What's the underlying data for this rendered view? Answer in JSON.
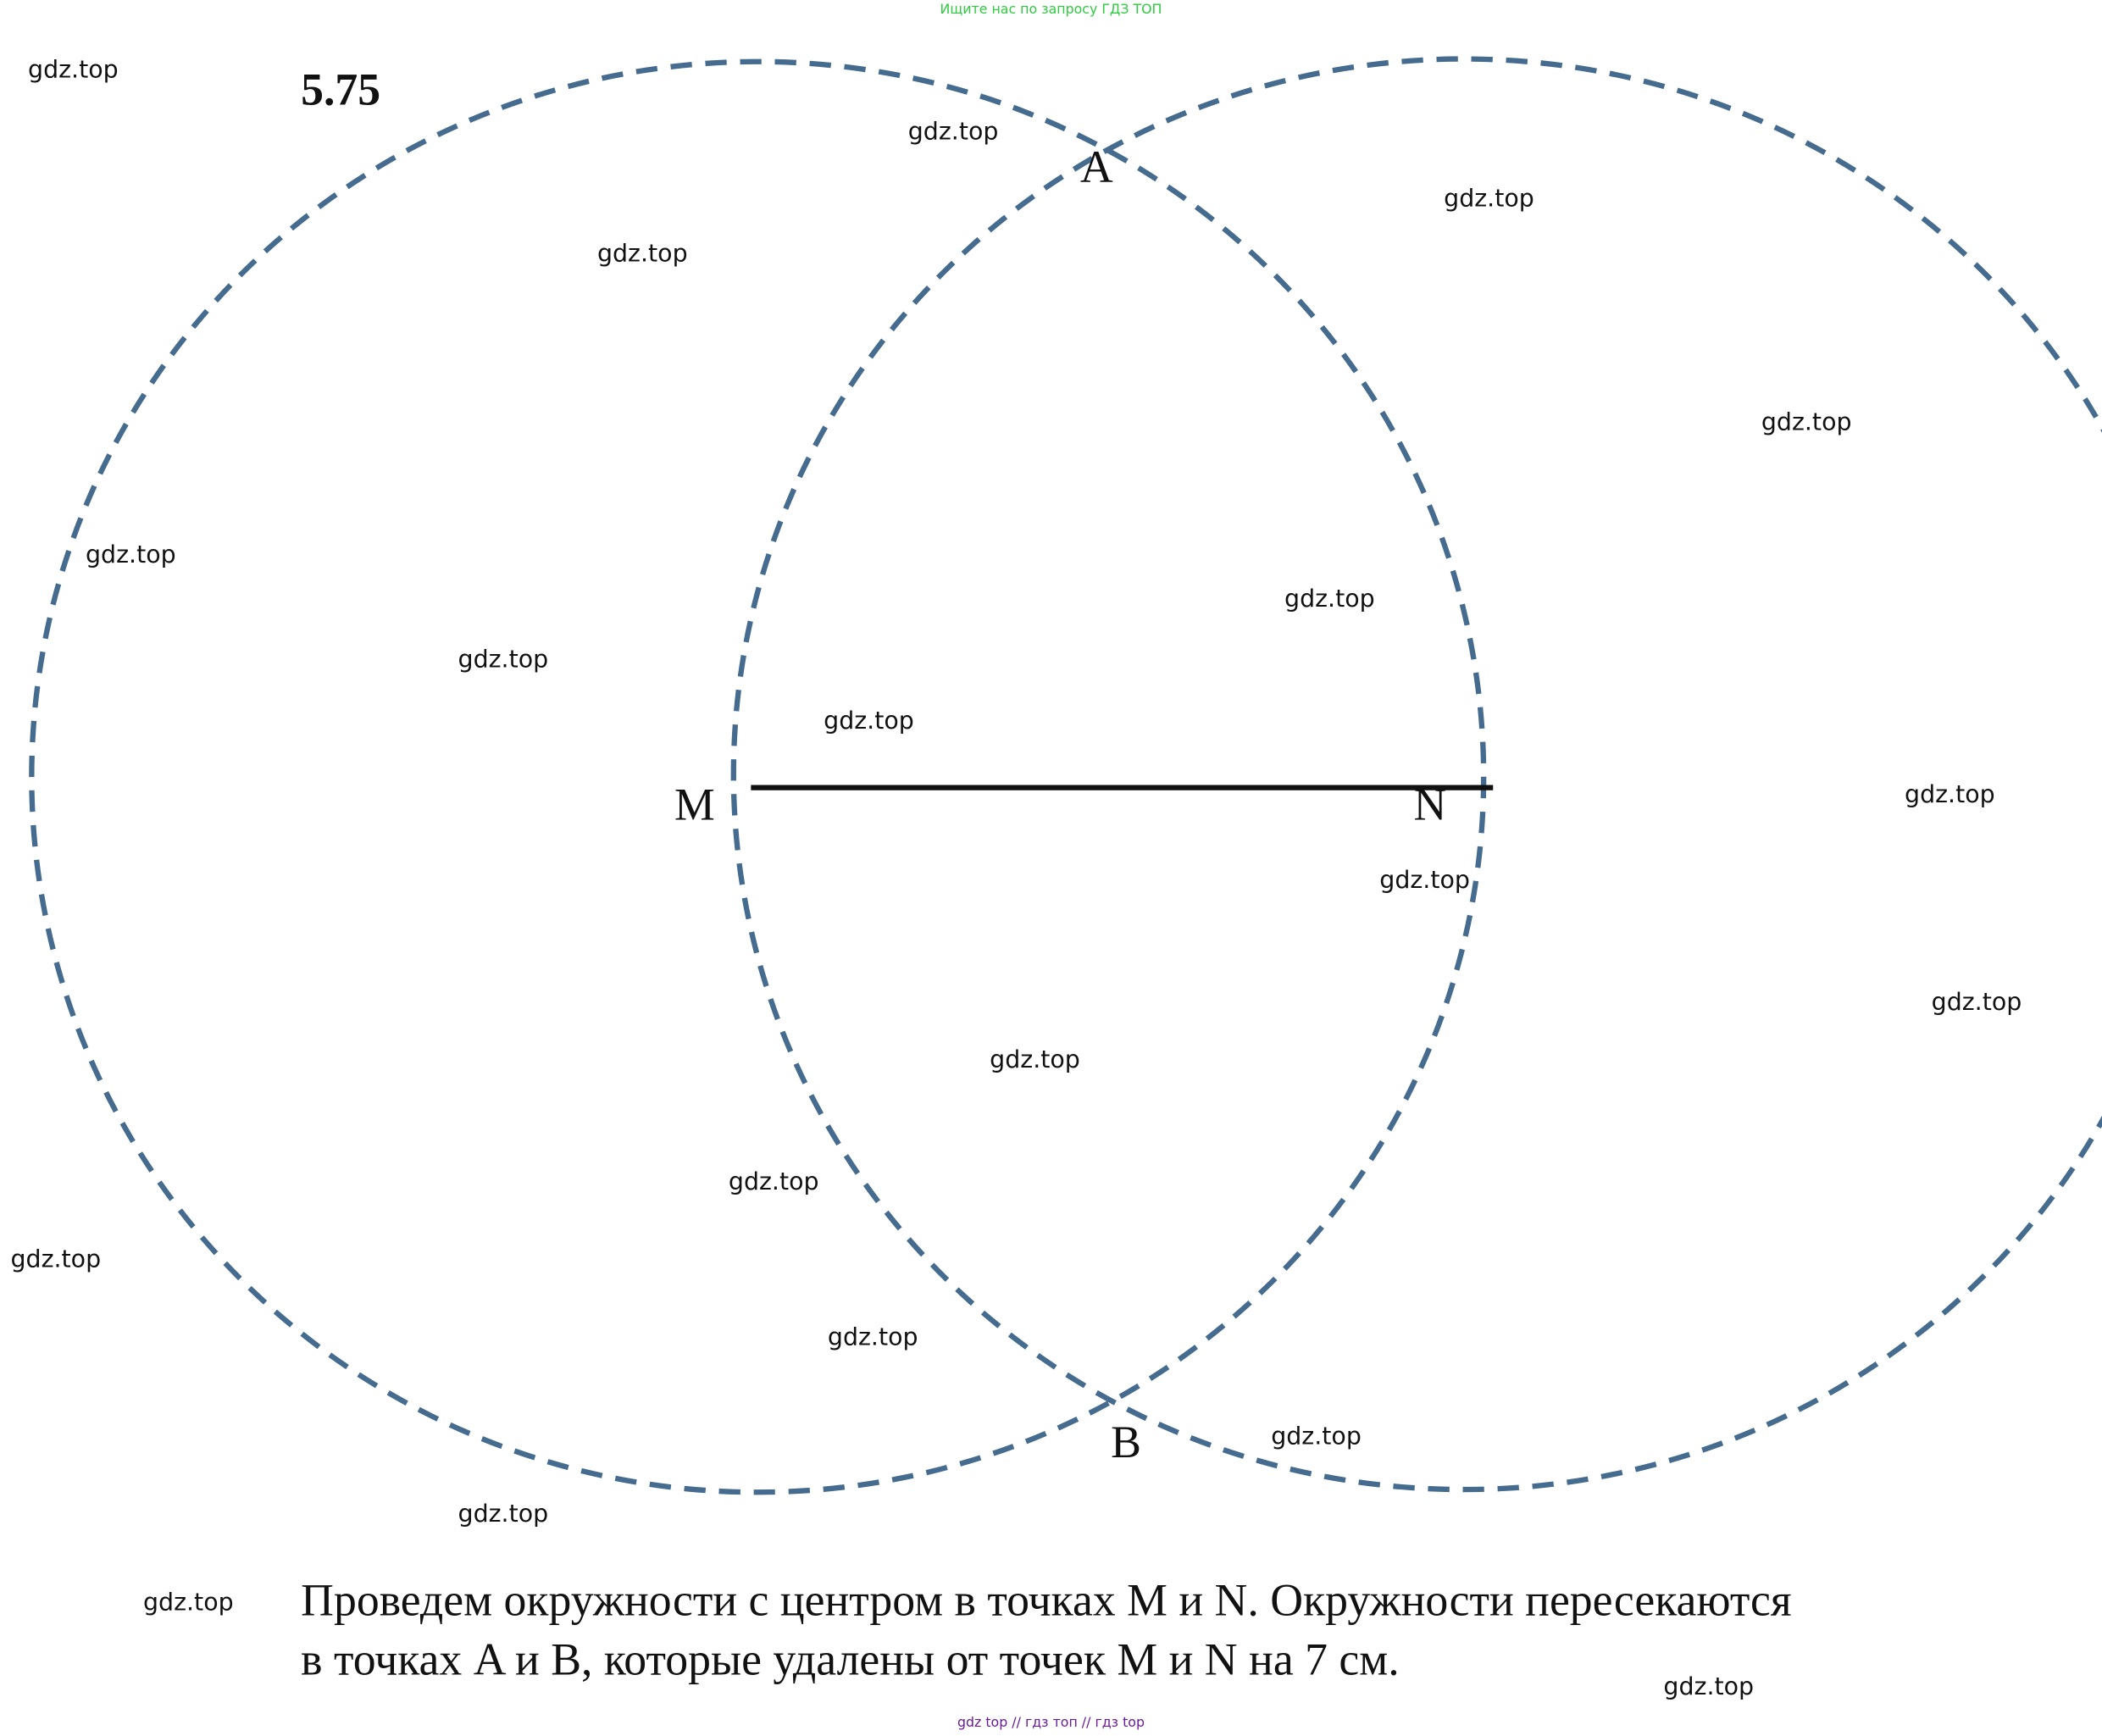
{
  "header": {
    "note": "Ищите нас по запросу ГДЗ ТОП",
    "problem_number": "5.75"
  },
  "points": {
    "A": "A",
    "B": "B",
    "M": "M",
    "N": "N"
  },
  "explanation": [
    "Проведем окружности с центром в точках M и N. Окружности пересекаются",
    "в точках A и B, которые удалены от точек M и N на 7 см."
  ],
  "footer": "gdz top  //  гдз топ  //  гдз top",
  "watermarks": [
    "gdz.top",
    "gdz.top",
    "gdz.top",
    "gdz.top",
    "gdz.top",
    "gdz.top",
    "gdz.top",
    "gdz.top",
    "gdz.top",
    "gdz.top",
    "gdz.top",
    "gdz.top",
    "gdz.top",
    "gdz.top",
    "gdz.top",
    "gdz.top",
    "gdz.top",
    "gdz.top",
    "gdz.top",
    "gdz.top"
  ]
}
